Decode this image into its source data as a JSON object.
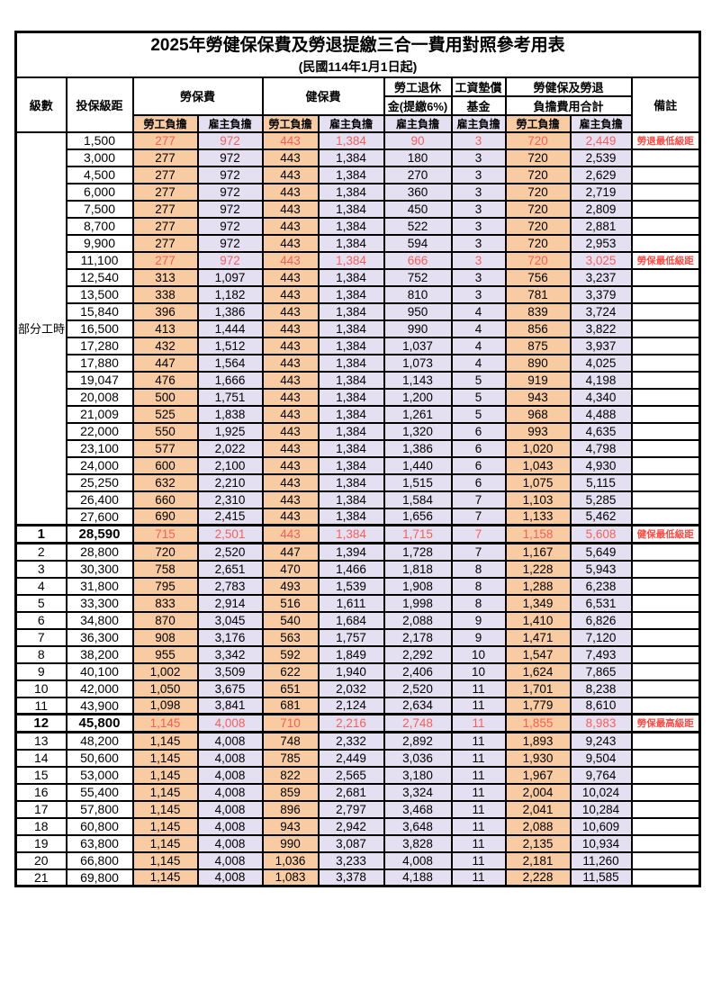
{
  "title": "2025年勞健保保費及勞退提繳三合一費用對照參考用表",
  "subtitle": "(民國114年1月1日起)",
  "colors": {
    "employee_column_bg": "#F9CBA2",
    "employer_column_bg": "#E4DFF1",
    "highlight_value_text": "#F4615C",
    "remark_text": "#FA4B44",
    "border": "#000000"
  },
  "header": {
    "level": "級數",
    "bracket": "投保級距",
    "labor_fee": "勞保費",
    "health_fee": "健保費",
    "pension_line1": "勞工退休",
    "pension_line2": "金(提繳6%)",
    "wage_fund_line1": "工資墊償",
    "wage_fund_line2": "基金",
    "total_line1": "勞健保及勞退",
    "total_line2": "負擔費用合計",
    "remark": "備註",
    "employee_share": "勞工負擔",
    "employer_share": "雇主負擔"
  },
  "table": {
    "part_time_label": "部分工時",
    "part_time_span": 23,
    "rows": [
      {
        "lv": "",
        "br": "1,500",
        "v": [
          "277",
          "972",
          "443",
          "1,384",
          "90",
          "3",
          "720",
          "2,449"
        ],
        "rm": "勞退最低級距",
        "red": true
      },
      {
        "lv": "",
        "br": "3,000",
        "v": [
          "277",
          "972",
          "443",
          "1,384",
          "180",
          "3",
          "720",
          "2,539"
        ]
      },
      {
        "lv": "",
        "br": "4,500",
        "v": [
          "277",
          "972",
          "443",
          "1,384",
          "270",
          "3",
          "720",
          "2,629"
        ]
      },
      {
        "lv": "",
        "br": "6,000",
        "v": [
          "277",
          "972",
          "443",
          "1,384",
          "360",
          "3",
          "720",
          "2,719"
        ]
      },
      {
        "lv": "",
        "br": "7,500",
        "v": [
          "277",
          "972",
          "443",
          "1,384",
          "450",
          "3",
          "720",
          "2,809"
        ]
      },
      {
        "lv": "",
        "br": "8,700",
        "v": [
          "277",
          "972",
          "443",
          "1,384",
          "522",
          "3",
          "720",
          "2,881"
        ]
      },
      {
        "lv": "",
        "br": "9,900",
        "v": [
          "277",
          "972",
          "443",
          "1,384",
          "594",
          "3",
          "720",
          "2,953"
        ]
      },
      {
        "lv": "",
        "br": "11,100",
        "v": [
          "277",
          "972",
          "443",
          "1,384",
          "666",
          "3",
          "720",
          "3,025"
        ],
        "rm": "勞保最低級距",
        "red": true
      },
      {
        "lv": "",
        "br": "12,540",
        "v": [
          "313",
          "1,097",
          "443",
          "1,384",
          "752",
          "3",
          "756",
          "3,237"
        ]
      },
      {
        "lv": "",
        "br": "13,500",
        "v": [
          "338",
          "1,182",
          "443",
          "1,384",
          "810",
          "3",
          "781",
          "3,379"
        ]
      },
      {
        "lv": "",
        "br": "15,840",
        "v": [
          "396",
          "1,386",
          "443",
          "1,384",
          "950",
          "4",
          "839",
          "3,724"
        ]
      },
      {
        "lv": "",
        "br": "16,500",
        "v": [
          "413",
          "1,444",
          "443",
          "1,384",
          "990",
          "4",
          "856",
          "3,822"
        ]
      },
      {
        "lv": "",
        "br": "17,280",
        "v": [
          "432",
          "1,512",
          "443",
          "1,384",
          "1,037",
          "4",
          "875",
          "3,937"
        ]
      },
      {
        "lv": "",
        "br": "17,880",
        "v": [
          "447",
          "1,564",
          "443",
          "1,384",
          "1,073",
          "4",
          "890",
          "4,025"
        ]
      },
      {
        "lv": "",
        "br": "19,047",
        "v": [
          "476",
          "1,666",
          "443",
          "1,384",
          "1,143",
          "5",
          "919",
          "4,198"
        ]
      },
      {
        "lv": "",
        "br": "20,008",
        "v": [
          "500",
          "1,751",
          "443",
          "1,384",
          "1,200",
          "5",
          "943",
          "4,340"
        ]
      },
      {
        "lv": "",
        "br": "21,009",
        "v": [
          "525",
          "1,838",
          "443",
          "1,384",
          "1,261",
          "5",
          "968",
          "4,488"
        ]
      },
      {
        "lv": "",
        "br": "22,000",
        "v": [
          "550",
          "1,925",
          "443",
          "1,384",
          "1,320",
          "6",
          "993",
          "4,635"
        ]
      },
      {
        "lv": "",
        "br": "23,100",
        "v": [
          "577",
          "2,022",
          "443",
          "1,384",
          "1,386",
          "6",
          "1,020",
          "4,798"
        ]
      },
      {
        "lv": "",
        "br": "24,000",
        "v": [
          "600",
          "2,100",
          "443",
          "1,384",
          "1,440",
          "6",
          "1,043",
          "4,930"
        ]
      },
      {
        "lv": "",
        "br": "25,250",
        "v": [
          "632",
          "2,210",
          "443",
          "1,384",
          "1,515",
          "6",
          "1,075",
          "5,115"
        ]
      },
      {
        "lv": "",
        "br": "26,400",
        "v": [
          "660",
          "2,310",
          "443",
          "1,384",
          "1,584",
          "7",
          "1,103",
          "5,285"
        ]
      },
      {
        "lv": "",
        "br": "27,600",
        "v": [
          "690",
          "2,415",
          "443",
          "1,384",
          "1,656",
          "7",
          "1,133",
          "5,462"
        ]
      },
      {
        "lv": "1",
        "br": "28,590",
        "v": [
          "715",
          "2,501",
          "443",
          "1,384",
          "1,715",
          "7",
          "1,158",
          "5,608"
        ],
        "rm": "健保最低級距",
        "red": true,
        "bold": true,
        "thick": true
      },
      {
        "lv": "2",
        "br": "28,800",
        "v": [
          "720",
          "2,520",
          "447",
          "1,394",
          "1,728",
          "7",
          "1,167",
          "5,649"
        ]
      },
      {
        "lv": "3",
        "br": "30,300",
        "v": [
          "758",
          "2,651",
          "470",
          "1,466",
          "1,818",
          "8",
          "1,228",
          "5,943"
        ]
      },
      {
        "lv": "4",
        "br": "31,800",
        "v": [
          "795",
          "2,783",
          "493",
          "1,539",
          "1,908",
          "8",
          "1,288",
          "6,238"
        ]
      },
      {
        "lv": "5",
        "br": "33,300",
        "v": [
          "833",
          "2,914",
          "516",
          "1,611",
          "1,998",
          "8",
          "1,349",
          "6,531"
        ]
      },
      {
        "lv": "6",
        "br": "34,800",
        "v": [
          "870",
          "3,045",
          "540",
          "1,684",
          "2,088",
          "9",
          "1,410",
          "6,826"
        ]
      },
      {
        "lv": "7",
        "br": "36,300",
        "v": [
          "908",
          "3,176",
          "563",
          "1,757",
          "2,178",
          "9",
          "1,471",
          "7,120"
        ]
      },
      {
        "lv": "8",
        "br": "38,200",
        "v": [
          "955",
          "3,342",
          "592",
          "1,849",
          "2,292",
          "10",
          "1,547",
          "7,493"
        ]
      },
      {
        "lv": "9",
        "br": "40,100",
        "v": [
          "1,002",
          "3,509",
          "622",
          "1,940",
          "2,406",
          "10",
          "1,624",
          "7,865"
        ]
      },
      {
        "lv": "10",
        "br": "42,000",
        "v": [
          "1,050",
          "3,675",
          "651",
          "2,032",
          "2,520",
          "11",
          "1,701",
          "8,238"
        ]
      },
      {
        "lv": "11",
        "br": "43,900",
        "v": [
          "1,098",
          "3,841",
          "681",
          "2,124",
          "2,634",
          "11",
          "1,779",
          "8,610"
        ]
      },
      {
        "lv": "12",
        "br": "45,800",
        "v": [
          "1,145",
          "4,008",
          "710",
          "2,216",
          "2,748",
          "11",
          "1,855",
          "8,983"
        ],
        "rm": "勞保最高級距",
        "red": true,
        "bold": true,
        "thick": true
      },
      {
        "lv": "13",
        "br": "48,200",
        "v": [
          "1,145",
          "4,008",
          "748",
          "2,332",
          "2,892",
          "11",
          "1,893",
          "9,243"
        ]
      },
      {
        "lv": "14",
        "br": "50,600",
        "v": [
          "1,145",
          "4,008",
          "785",
          "2,449",
          "3,036",
          "11",
          "1,930",
          "9,504"
        ]
      },
      {
        "lv": "15",
        "br": "53,000",
        "v": [
          "1,145",
          "4,008",
          "822",
          "2,565",
          "3,180",
          "11",
          "1,967",
          "9,764"
        ]
      },
      {
        "lv": "16",
        "br": "55,400",
        "v": [
          "1,145",
          "4,008",
          "859",
          "2,681",
          "3,324",
          "11",
          "2,004",
          "10,024"
        ]
      },
      {
        "lv": "17",
        "br": "57,800",
        "v": [
          "1,145",
          "4,008",
          "896",
          "2,797",
          "3,468",
          "11",
          "2,041",
          "10,284"
        ]
      },
      {
        "lv": "18",
        "br": "60,800",
        "v": [
          "1,145",
          "4,008",
          "943",
          "2,942",
          "3,648",
          "11",
          "2,088",
          "10,609"
        ]
      },
      {
        "lv": "19",
        "br": "63,800",
        "v": [
          "1,145",
          "4,008",
          "990",
          "3,087",
          "3,828",
          "11",
          "2,135",
          "10,934"
        ]
      },
      {
        "lv": "20",
        "br": "66,800",
        "v": [
          "1,145",
          "4,008",
          "1,036",
          "3,233",
          "4,008",
          "11",
          "2,181",
          "11,260"
        ]
      },
      {
        "lv": "21",
        "br": "69,800",
        "v": [
          "1,145",
          "4,008",
          "1,083",
          "3,378",
          "4,188",
          "11",
          "2,228",
          "11,585"
        ]
      }
    ]
  }
}
